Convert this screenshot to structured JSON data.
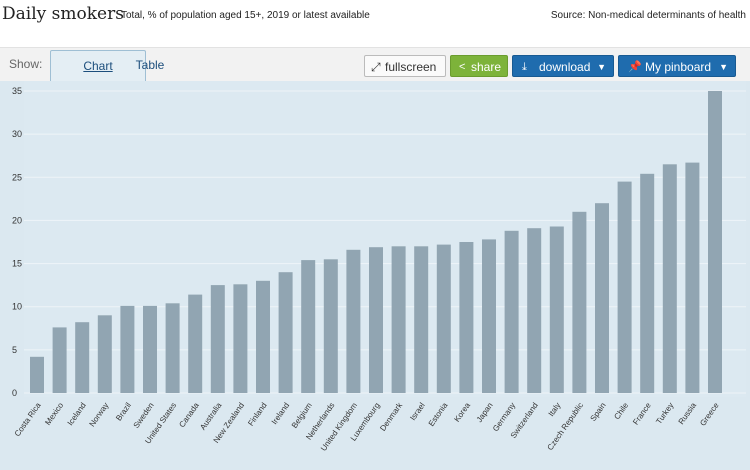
{
  "header": {
    "title": "Daily smokers",
    "subtitle": "Total, % of population aged 15+, 2019 or latest available",
    "source": "Source: Non-medical determinants of health"
  },
  "toolbar": {
    "show_label": "Show:",
    "tabs": [
      {
        "label": "Chart",
        "active": true
      },
      {
        "label": "Table",
        "active": false
      }
    ],
    "fullscreen_label": "fullscreen",
    "share_label": "share",
    "download_label": "download",
    "pinboard_label": "My pinboard"
  },
  "icons": {
    "fullscreen": "expand-icon",
    "share": "share-icon",
    "download": "download-icon",
    "pinboard": "pin-icon",
    "dropdown": "chevron-down-icon"
  },
  "colors": {
    "bar": "#91a5b2",
    "plot_background": "#dbe8f0",
    "share": "#7db33a",
    "primary_button": "#1f6cae"
  },
  "chart_data": {
    "type": "bar",
    "title": "",
    "xlabel": "",
    "ylabel": "",
    "ylim": [
      0,
      35
    ],
    "yticks": [
      0,
      5,
      10,
      15,
      20,
      25,
      30,
      35
    ],
    "grid": true,
    "categories": [
      "Costa Rica",
      "Mexico",
      "Iceland",
      "Norway",
      "Brazil",
      "Sweden",
      "United States",
      "Canada",
      "Australia",
      "New Zealand",
      "Finland",
      "Ireland",
      "Belgium",
      "Netherlands",
      "United Kingdom",
      "Luxembourg",
      "Denmark",
      "Israel",
      "Estonia",
      "Korea",
      "Japan",
      "Germany",
      "Switzerland",
      "Italy",
      "Czech Republic",
      "Spain",
      "Chile",
      "France",
      "Turkey",
      "Russia",
      "Greece"
    ],
    "values": [
      4.2,
      7.6,
      8.2,
      9.0,
      10.1,
      10.1,
      10.4,
      11.4,
      12.5,
      12.6,
      13.0,
      14.0,
      15.4,
      15.5,
      16.6,
      16.9,
      17.0,
      17.0,
      17.2,
      17.5,
      17.8,
      18.8,
      19.1,
      19.3,
      21.0,
      22.0,
      24.5,
      25.4,
      26.5,
      26.7,
      35.0
    ]
  }
}
